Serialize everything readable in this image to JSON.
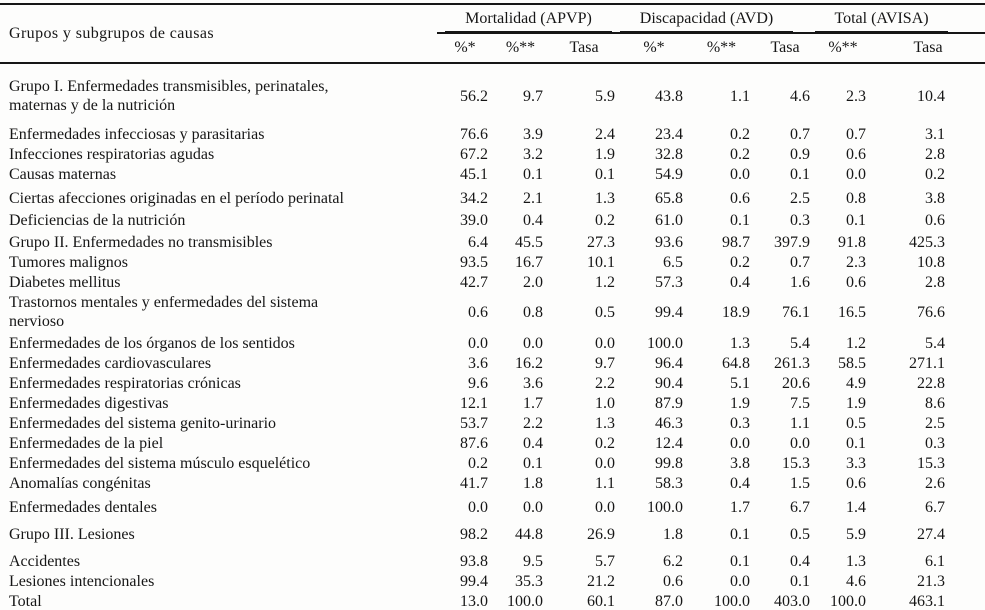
{
  "colors": {
    "text": "#161616",
    "background": "#fdfdfc",
    "rule": "#161616"
  },
  "chart_data": {
    "type": "table",
    "corner_header": "Grupos y subgrupos de causas",
    "column_groups": [
      {
        "label": "Mortalidad (APVP)",
        "subcols": [
          "%*",
          "%**",
          "Tasa"
        ]
      },
      {
        "label": "Discapacidad (AVD)",
        "subcols": [
          "%*",
          "%**",
          "Tasa"
        ]
      },
      {
        "label": "Total (AVISA)",
        "subcols": [
          "%**",
          "Tasa"
        ]
      }
    ],
    "rows": [
      {
        "kind": "group",
        "sp": 12,
        "label": "Grupo I. Enfermedades transmisibles, perinatales,\nmaternas y de la nutrición",
        "values": [
          "56.2",
          "9.7",
          "5.9",
          "43.8",
          "1.1",
          "4.6",
          "2.3",
          "10.4"
        ]
      },
      {
        "kind": "item",
        "sp": 8,
        "label": "Enfermedades infecciosas y parasitarias",
        "values": [
          "76.6",
          "3.9",
          "2.4",
          "23.4",
          "0.2",
          "0.7",
          "0.7",
          "3.1"
        ]
      },
      {
        "kind": "item",
        "sp": 0,
        "label": "Infecciones respiratorias agudas",
        "values": [
          "67.2",
          "3.2",
          "1.9",
          "32.8",
          "0.2",
          "0.9",
          "0.6",
          "2.8"
        ]
      },
      {
        "kind": "item",
        "sp": 0,
        "label": "Causas maternas",
        "values": [
          "45.1",
          "0.1",
          "0.1",
          "54.9",
          "0.0",
          "0.1",
          "0.0",
          "0.2"
        ]
      },
      {
        "kind": "item",
        "sp": 4,
        "label": "Ciertas afecciones originadas en el período perinatal",
        "values": [
          "34.2",
          "2.1",
          "1.3",
          "65.8",
          "0.6",
          "2.5",
          "0.8",
          "3.8"
        ]
      },
      {
        "kind": "item",
        "sp": 2,
        "label": "Deficiencias de la nutrición",
        "values": [
          "39.0",
          "0.4",
          "0.2",
          "61.0",
          "0.1",
          "0.3",
          "0.1",
          "0.6"
        ]
      },
      {
        "kind": "group",
        "sp": 2,
        "label": "Grupo II. Enfermedades no transmisibles",
        "values": [
          "6.4",
          "45.5",
          "27.3",
          "93.6",
          "98.7",
          "397.9",
          "91.8",
          "425.3"
        ]
      },
      {
        "kind": "item",
        "sp": 0,
        "label": "Tumores malignos",
        "values": [
          "93.5",
          "16.7",
          "10.1",
          "6.5",
          "0.2",
          "0.7",
          "2.3",
          "10.8"
        ]
      },
      {
        "kind": "item",
        "sp": 0,
        "label": "Diabetes mellitus",
        "values": [
          "42.7",
          "2.0",
          "1.2",
          "57.3",
          "0.4",
          "1.6",
          "0.6",
          "2.8"
        ]
      },
      {
        "kind": "item",
        "sp": 0,
        "label": "Trastornos mentales y enfermedades del sistema\nnervioso",
        "values": [
          "0.6",
          "0.8",
          "0.5",
          "99.4",
          "18.9",
          "76.1",
          "16.5",
          "76.6"
        ]
      },
      {
        "kind": "item",
        "sp": 0,
        "label": "Enfermedades de los órganos de los sentidos",
        "values": [
          "0.0",
          "0.0",
          "0.0",
          "100.0",
          "1.3",
          "5.4",
          "1.2",
          "5.4"
        ]
      },
      {
        "kind": "item",
        "sp": 0,
        "label": "Enfermedades cardiovasculares",
        "values": [
          "3.6",
          "16.2",
          "9.7",
          "96.4",
          "64.8",
          "261.3",
          "58.5",
          "271.1"
        ]
      },
      {
        "kind": "item",
        "sp": 0,
        "label": "Enfermedades respiratorias crónicas",
        "values": [
          "9.6",
          "3.6",
          "2.2",
          "90.4",
          "5.1",
          "20.6",
          "4.9",
          "22.8"
        ]
      },
      {
        "kind": "item",
        "sp": 0,
        "label": "Enfermedades digestivas",
        "values": [
          "12.1",
          "1.7",
          "1.0",
          "87.9",
          "1.9",
          "7.5",
          "1.9",
          "8.6"
        ]
      },
      {
        "kind": "item",
        "sp": 0,
        "label": "Enfermedades del sistema genito-urinario",
        "values": [
          "53.7",
          "2.2",
          "1.3",
          "46.3",
          "0.3",
          "1.1",
          "0.5",
          "2.5"
        ]
      },
      {
        "kind": "item",
        "sp": 0,
        "label": "Enfermedades de la piel",
        "values": [
          "87.6",
          "0.4",
          "0.2",
          "12.4",
          "0.0",
          "0.0",
          "0.1",
          "0.3"
        ]
      },
      {
        "kind": "item",
        "sp": 0,
        "label": "Enfermedades del sistema músculo esquelético",
        "values": [
          "0.2",
          "0.1",
          "0.0",
          "99.8",
          "3.8",
          "15.3",
          "3.3",
          "15.3"
        ]
      },
      {
        "kind": "item",
        "sp": 0,
        "label": "Anomalías congénitas",
        "values": [
          "41.7",
          "1.8",
          "1.1",
          "58.3",
          "0.4",
          "1.5",
          "0.6",
          "2.6"
        ]
      },
      {
        "kind": "item",
        "sp": 4,
        "label": "Enfermedades dentales",
        "values": [
          "0.0",
          "0.0",
          "0.0",
          "100.0",
          "1.7",
          "6.7",
          "1.4",
          "6.7"
        ]
      },
      {
        "kind": "group",
        "sp": 8,
        "label": "Grupo III. Lesiones",
        "values": [
          "98.2",
          "44.8",
          "26.9",
          "1.8",
          "0.1",
          "0.5",
          "5.9",
          "27.4"
        ]
      },
      {
        "kind": "item",
        "sp": 8,
        "label": "Accidentes",
        "values": [
          "93.8",
          "9.5",
          "5.7",
          "6.2",
          "0.1",
          "0.4",
          "1.3",
          "6.1"
        ]
      },
      {
        "kind": "item",
        "sp": 0,
        "label": "Lesiones intencionales",
        "values": [
          "99.4",
          "35.3",
          "21.2",
          "0.6",
          "0.0",
          "0.1",
          "4.6",
          "21.3"
        ]
      },
      {
        "kind": "total",
        "sp": 0,
        "label": "Total",
        "values": [
          "13.0",
          "100.0",
          "60.1",
          "87.0",
          "100.0",
          "403.0",
          "100.0",
          "463.1"
        ]
      }
    ]
  }
}
